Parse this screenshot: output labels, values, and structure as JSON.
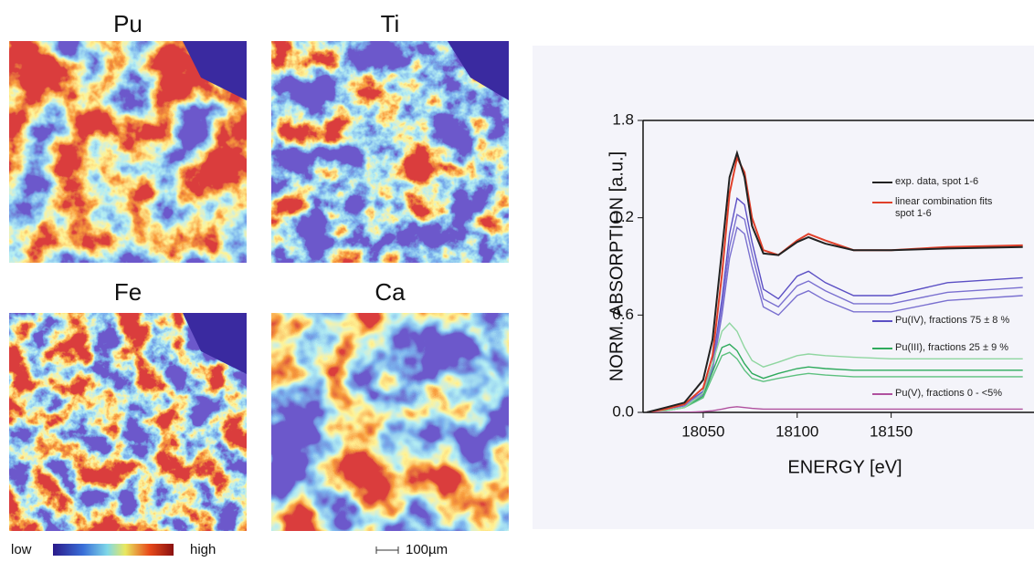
{
  "maps": [
    {
      "label": "Pu"
    },
    {
      "label": "Ti"
    },
    {
      "label": "Fe"
    },
    {
      "label": "Ca"
    }
  ],
  "colorbar": {
    "low": "low",
    "high": "high"
  },
  "scale_bar": "100µm",
  "chart_data": {
    "type": "line",
    "x_label": "ENERGY [eV]",
    "y_label": "NORM. ABSORPTION [a.u.]",
    "x": [
      18020,
      18030,
      18040,
      18050,
      18055,
      18060,
      18064,
      18068,
      18072,
      18076,
      18082,
      18090,
      18100,
      18106,
      18115,
      18130,
      18150,
      18180,
      18220
    ],
    "xlim": [
      18018,
      18226
    ],
    "xticks": [
      18050,
      18100,
      18150
    ],
    "ylim": [
      0,
      1.8
    ],
    "yticks": [
      {
        "value": 0,
        "label": "0.0"
      },
      0.6,
      1.2,
      1.8
    ],
    "grid": false,
    "series": [
      {
        "name": "Pu(IV), fractions 75 ± 8 %",
        "color": "#5b4fc4",
        "values": [
          0,
          0.02,
          0.05,
          0.13,
          0.3,
          0.7,
          1.1,
          1.32,
          1.28,
          1.05,
          0.76,
          0.7,
          0.84,
          0.87,
          0.8,
          0.72,
          0.72,
          0.8,
          0.83
        ]
      },
      {
        "color": "#7a70d0",
        "values": [
          0,
          0.02,
          0.05,
          0.12,
          0.28,
          0.65,
          1.02,
          1.22,
          1.19,
          0.98,
          0.7,
          0.65,
          0.78,
          0.81,
          0.75,
          0.67,
          0.67,
          0.74,
          0.77
        ]
      },
      {
        "color": "#7a70d0",
        "values": [
          0,
          0.02,
          0.04,
          0.11,
          0.26,
          0.6,
          0.95,
          1.14,
          1.1,
          0.9,
          0.65,
          0.6,
          0.72,
          0.75,
          0.69,
          0.62,
          0.62,
          0.69,
          0.72
        ]
      },
      {
        "name": "Pu(III), fractions 25 ± 9 %",
        "color": "#2eaa5c",
        "values": [
          0,
          0.01,
          0.03,
          0.1,
          0.25,
          0.4,
          0.42,
          0.38,
          0.3,
          0.24,
          0.21,
          0.24,
          0.27,
          0.28,
          0.27,
          0.26,
          0.26,
          0.26,
          0.26
        ]
      },
      {
        "color": "#5cc07e",
        "values": [
          0,
          0.01,
          0.03,
          0.09,
          0.22,
          0.35,
          0.37,
          0.33,
          0.26,
          0.21,
          0.19,
          0.21,
          0.23,
          0.24,
          0.23,
          0.22,
          0.22,
          0.22,
          0.22
        ]
      },
      {
        "color": "#8fd6a0",
        "values": [
          0,
          0.01,
          0.03,
          0.12,
          0.3,
          0.5,
          0.55,
          0.5,
          0.4,
          0.32,
          0.28,
          0.31,
          0.35,
          0.36,
          0.35,
          0.34,
          0.33,
          0.33,
          0.33
        ]
      },
      {
        "name": "Pu(V), fractions 0 - <5%",
        "color": "#b0509e",
        "values": [
          0,
          0,
          0,
          0.005,
          0.01,
          0.02,
          0.03,
          0.035,
          0.03,
          0.025,
          0.02,
          0.02,
          0.02,
          0.02,
          0.02,
          0.02,
          0.02,
          0.02,
          0.02
        ]
      },
      {
        "name": "linear combination fits spot 1-6",
        "color": "#e0402a",
        "values": [
          0,
          0.02,
          0.05,
          0.15,
          0.35,
          0.85,
          1.35,
          1.57,
          1.48,
          1.2,
          1.0,
          0.97,
          1.06,
          1.1,
          1.06,
          1.0,
          1.0,
          1.02,
          1.03
        ]
      },
      {
        "name": "exp. data, spot 1-6",
        "color": "#222222",
        "values": [
          0,
          0.03,
          0.06,
          0.2,
          0.45,
          1.0,
          1.45,
          1.6,
          1.45,
          1.15,
          0.98,
          0.97,
          1.05,
          1.08,
          1.04,
          1.0,
          1.0,
          1.01,
          1.02
        ]
      }
    ]
  }
}
